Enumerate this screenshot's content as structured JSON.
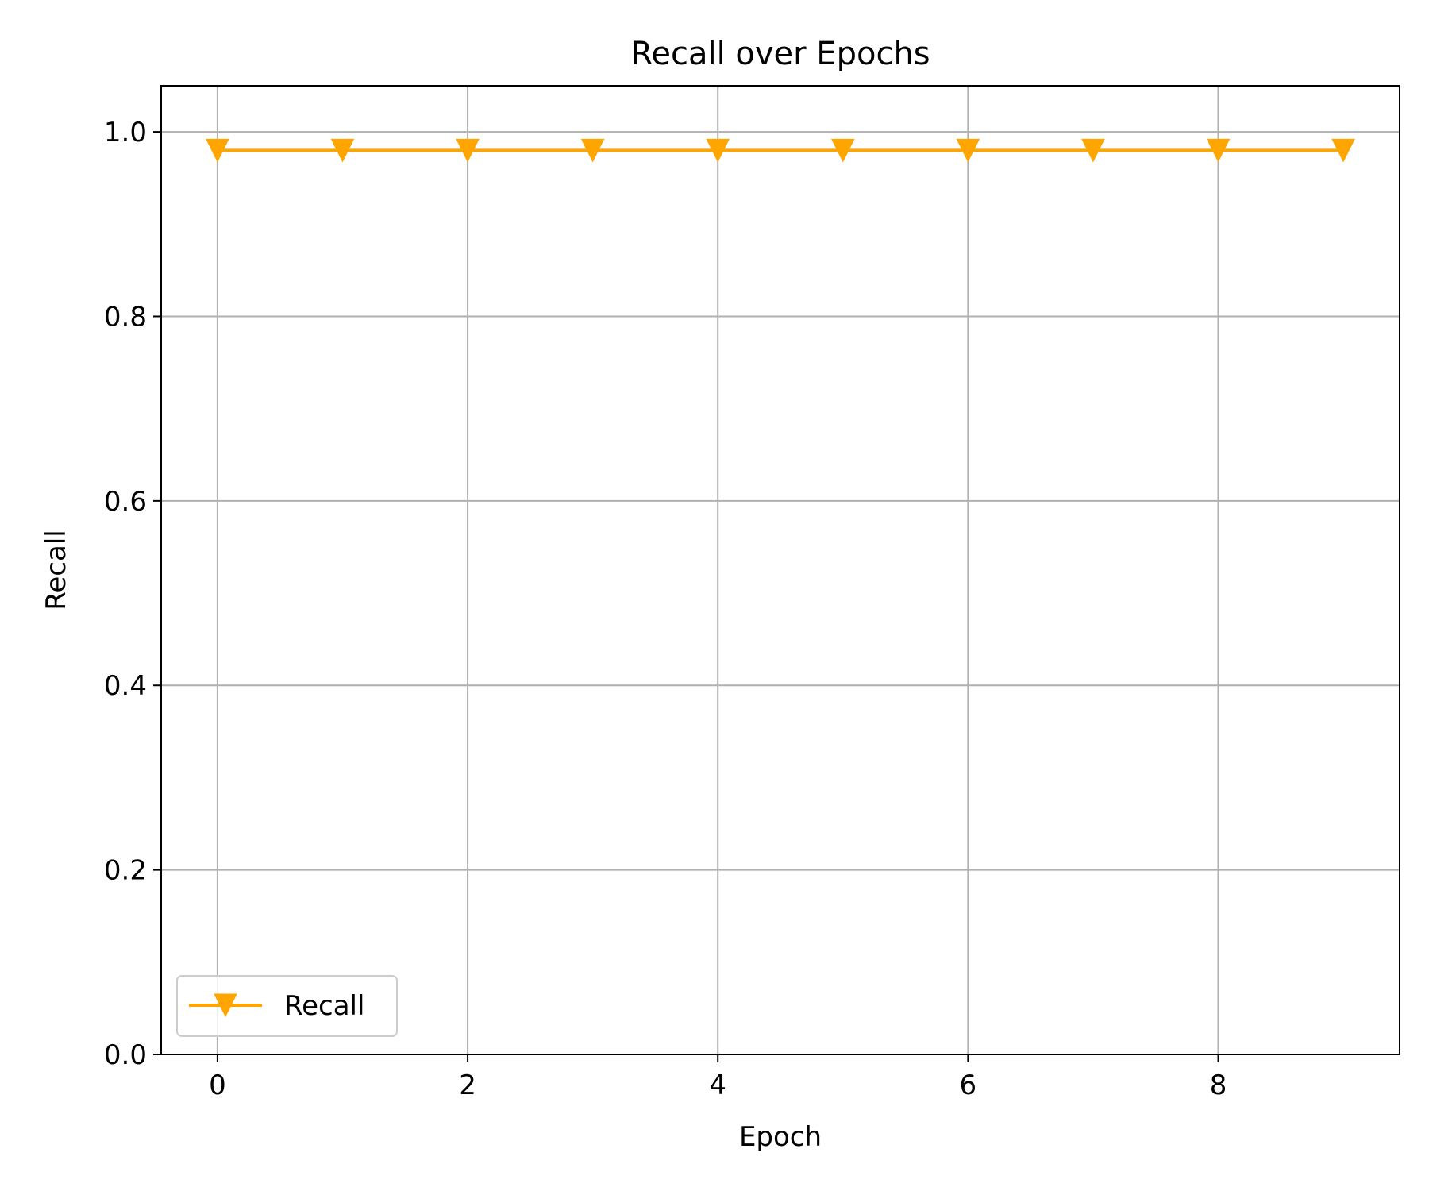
{
  "chart_data": {
    "type": "line",
    "title": "Recall over Epochs",
    "xlabel": "Epoch",
    "ylabel": "Recall",
    "xlim": [
      -0.45,
      9.45
    ],
    "ylim": [
      0.0,
      1.05
    ],
    "xticks": [
      0,
      2,
      4,
      6,
      8
    ],
    "xtick_labels": [
      "0",
      "2",
      "4",
      "6",
      "8"
    ],
    "yticks": [
      0.0,
      0.2,
      0.4,
      0.6,
      0.8,
      1.0
    ],
    "ytick_labels": [
      "0.0",
      "0.2",
      "0.4",
      "0.6",
      "0.8",
      "1.0"
    ],
    "grid": true,
    "legend_position": "lower-left",
    "x": [
      0,
      1,
      2,
      3,
      4,
      5,
      6,
      7,
      8,
      9
    ],
    "series": [
      {
        "name": "Recall",
        "color": "#FFA500",
        "marker": "triangle-down",
        "values": [
          0.98,
          0.98,
          0.98,
          0.98,
          0.98,
          0.98,
          0.98,
          0.98,
          0.98,
          0.98
        ]
      }
    ]
  }
}
